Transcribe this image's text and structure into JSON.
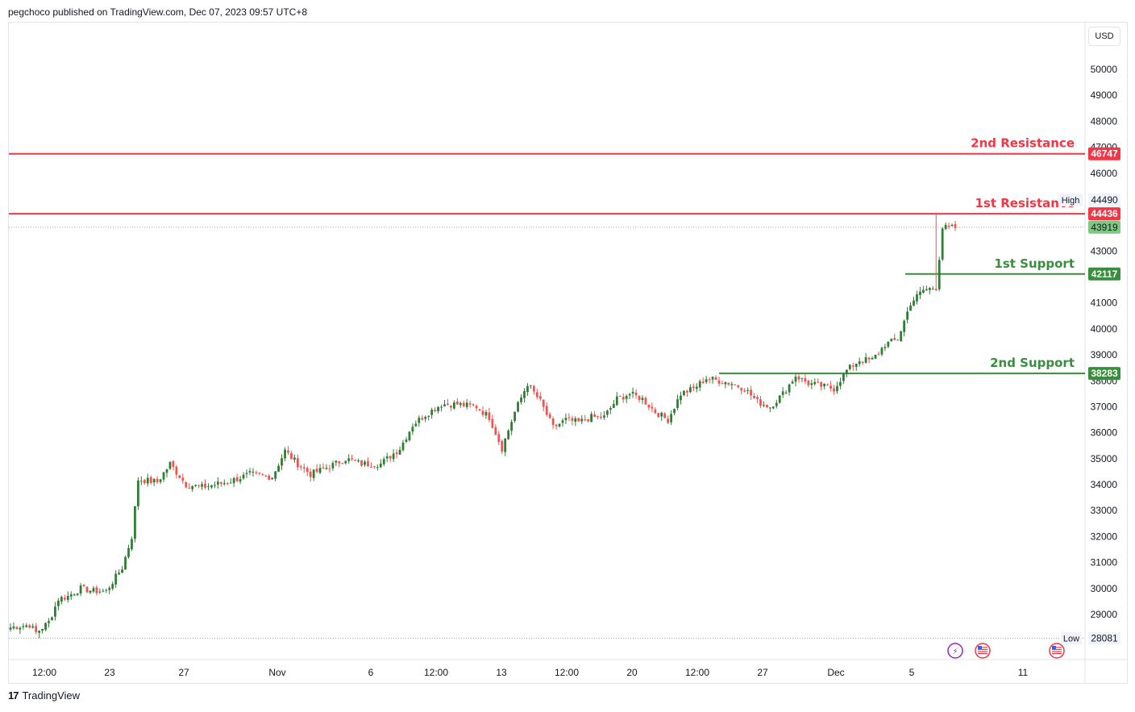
{
  "header": {
    "attribution": "pegchoco published on TradingView.com, Dec 07, 2023 09:57 UTC+8"
  },
  "currency_button": "USD",
  "footer": {
    "brand": "TradingView"
  },
  "colors": {
    "up": "#26a69a",
    "up_body": "#2e7d32",
    "down": "#ef5350",
    "resistance": "#f23645",
    "support": "#388e3c",
    "current_price": "#81c784",
    "grid_text": "#131722"
  },
  "chart_data": {
    "type": "candlestick",
    "title": "",
    "y_axis": {
      "ticks": [
        29000,
        30000,
        31000,
        32000,
        33000,
        34000,
        35000,
        36000,
        37000,
        38000,
        39000,
        40000,
        41000,
        42000,
        43000,
        44000,
        45000,
        46000,
        47000,
        48000,
        49000,
        50000
      ],
      "tick_labels": [
        "29000",
        "30000",
        "31000",
        "32000",
        "33000",
        "34000",
        "35000",
        "36000",
        "37000",
        "38000",
        "39000",
        "40000",
        "41000",
        "42000",
        "43000",
        "44000",
        "45000",
        "46000",
        "47000",
        "48000",
        "49000",
        "50000"
      ],
      "range": [
        27800,
        51900
      ],
      "unit": "USD"
    },
    "x_axis": {
      "tick_labels": [
        "12:00",
        "23",
        "27",
        "Nov",
        "6",
        "12:00",
        "13",
        "12:00",
        "20",
        "12:00",
        "27",
        "Dec",
        "5",
        "11"
      ]
    },
    "levels": [
      {
        "label": "2nd Resistance",
        "price_label": "46747",
        "value": 46747,
        "kind": "resistance"
      },
      {
        "label": "1st Resistance",
        "price_label": "44436",
        "value": 44436,
        "kind": "resistance"
      },
      {
        "label": "1st Support",
        "price_label": "42117",
        "value": 42117,
        "kind": "support"
      },
      {
        "label": "2nd Support",
        "price_label": "38283",
        "value": 38283,
        "kind": "support"
      }
    ],
    "current_price": {
      "value": 43919,
      "label": "43919"
    },
    "high": {
      "value": 44490,
      "label": "44490",
      "tag": "High"
    },
    "low": {
      "value": 28081,
      "label": "28081",
      "tag": "Low"
    },
    "anchors": [
      [
        0,
        28500
      ],
      [
        6,
        28600
      ],
      [
        8,
        28300
      ],
      [
        12,
        28700
      ],
      [
        15,
        29600
      ],
      [
        18,
        29700
      ],
      [
        22,
        30000
      ],
      [
        26,
        29900
      ],
      [
        30,
        29900
      ],
      [
        35,
        30800
      ],
      [
        38,
        32000
      ],
      [
        40,
        34200
      ],
      [
        46,
        34100
      ],
      [
        50,
        34800
      ],
      [
        55,
        34000
      ],
      [
        60,
        33900
      ],
      [
        68,
        34100
      ],
      [
        75,
        34400
      ],
      [
        82,
        34300
      ],
      [
        86,
        35300
      ],
      [
        90,
        34800
      ],
      [
        94,
        34400
      ],
      [
        100,
        34700
      ],
      [
        105,
        35000
      ],
      [
        110,
        34800
      ],
      [
        116,
        34800
      ],
      [
        122,
        35400
      ],
      [
        126,
        36300
      ],
      [
        130,
        36700
      ],
      [
        135,
        37100
      ],
      [
        140,
        37100
      ],
      [
        146,
        37000
      ],
      [
        150,
        36600
      ],
      [
        154,
        35400
      ],
      [
        158,
        36800
      ],
      [
        162,
        37900
      ],
      [
        166,
        37200
      ],
      [
        170,
        36200
      ],
      [
        174,
        36500
      ],
      [
        178,
        36400
      ],
      [
        182,
        36600
      ],
      [
        186,
        36600
      ],
      [
        190,
        37300
      ],
      [
        194,
        37500
      ],
      [
        198,
        37300
      ],
      [
        202,
        36800
      ],
      [
        206,
        36500
      ],
      [
        210,
        37500
      ],
      [
        214,
        37700
      ],
      [
        218,
        38100
      ],
      [
        222,
        38000
      ],
      [
        226,
        37900
      ],
      [
        230,
        37700
      ],
      [
        234,
        37200
      ],
      [
        238,
        37000
      ],
      [
        242,
        37500
      ],
      [
        246,
        38200
      ],
      [
        250,
        37900
      ],
      [
        254,
        37800
      ],
      [
        258,
        37700
      ],
      [
        262,
        38400
      ],
      [
        266,
        38800
      ],
      [
        270,
        38800
      ],
      [
        274,
        39400
      ],
      [
        278,
        39600
      ],
      [
        282,
        41000
      ],
      [
        286,
        41500
      ],
      [
        290,
        41600
      ],
      [
        292,
        43900
      ],
      [
        296,
        43900
      ]
    ],
    "candle_count": 297
  }
}
